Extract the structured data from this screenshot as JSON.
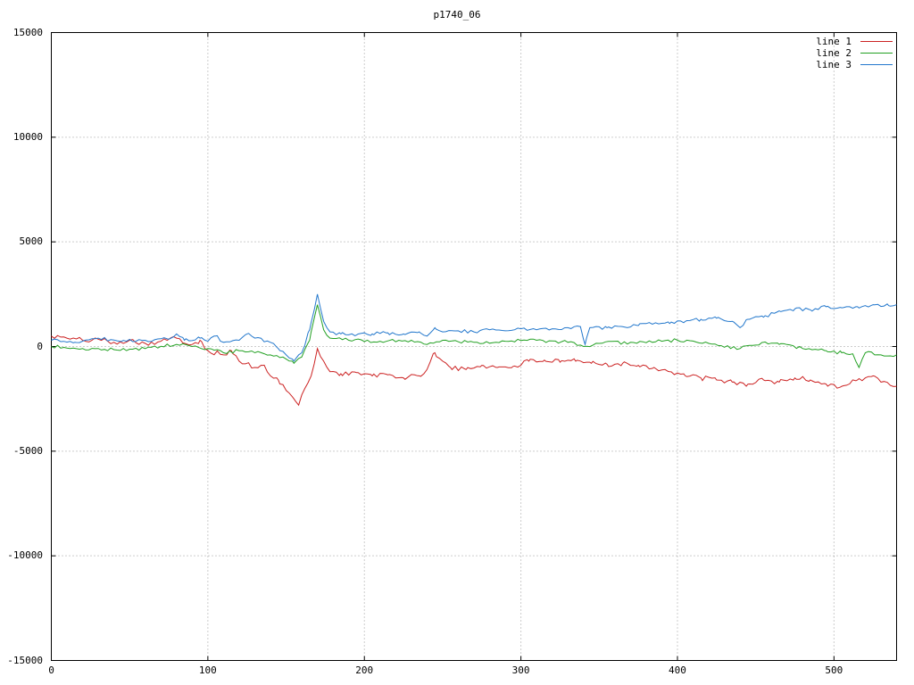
{
  "chart_data": {
    "type": "line",
    "title": "p1740_06",
    "xlabel": "",
    "ylabel": "",
    "xlim": [
      0,
      540
    ],
    "ylim": [
      -15000,
      15000
    ],
    "x_ticks": [
      0,
      100,
      200,
      300,
      400,
      500
    ],
    "y_ticks": [
      -15000,
      -10000,
      -5000,
      0,
      5000,
      10000,
      15000
    ],
    "grid": true,
    "grid_style": "dotted",
    "grid_color": "#9a9a9a",
    "axis_color": "#000000",
    "background_color": "#ffffff",
    "legend_position": "top-right-inside",
    "series": [
      {
        "name": "line 1",
        "color": "#cc2222",
        "noise_amplitude": 120,
        "points": [
          [
            0,
            500
          ],
          [
            10,
            400
          ],
          [
            20,
            300
          ],
          [
            30,
            350
          ],
          [
            40,
            200
          ],
          [
            50,
            300
          ],
          [
            60,
            150
          ],
          [
            70,
            250
          ],
          [
            80,
            400
          ],
          [
            90,
            100
          ],
          [
            95,
            300
          ],
          [
            100,
            -200
          ],
          [
            110,
            -400
          ],
          [
            115,
            -200
          ],
          [
            120,
            -700
          ],
          [
            130,
            -1000
          ],
          [
            135,
            -900
          ],
          [
            140,
            -1400
          ],
          [
            145,
            -1600
          ],
          [
            150,
            -2100
          ],
          [
            155,
            -2500
          ],
          [
            158,
            -2800
          ],
          [
            162,
            -2000
          ],
          [
            166,
            -1400
          ],
          [
            170,
            -100
          ],
          [
            174,
            -700
          ],
          [
            178,
            -1200
          ],
          [
            185,
            -1300
          ],
          [
            195,
            -1250
          ],
          [
            205,
            -1400
          ],
          [
            215,
            -1350
          ],
          [
            225,
            -1500
          ],
          [
            235,
            -1400
          ],
          [
            240,
            -1100
          ],
          [
            245,
            -300
          ],
          [
            250,
            -700
          ],
          [
            255,
            -1000
          ],
          [
            265,
            -1100
          ],
          [
            275,
            -900
          ],
          [
            285,
            -1000
          ],
          [
            295,
            -950
          ],
          [
            305,
            -700
          ],
          [
            315,
            -650
          ],
          [
            325,
            -750
          ],
          [
            335,
            -700
          ],
          [
            345,
            -800
          ],
          [
            355,
            -850
          ],
          [
            365,
            -800
          ],
          [
            375,
            -900
          ],
          [
            385,
            -1000
          ],
          [
            395,
            -1200
          ],
          [
            405,
            -1400
          ],
          [
            415,
            -1500
          ],
          [
            425,
            -1600
          ],
          [
            435,
            -1700
          ],
          [
            445,
            -1800
          ],
          [
            455,
            -1600
          ],
          [
            465,
            -1700
          ],
          [
            475,
            -1500
          ],
          [
            485,
            -1600
          ],
          [
            495,
            -1800
          ],
          [
            505,
            -1900
          ],
          [
            515,
            -1600
          ],
          [
            525,
            -1400
          ],
          [
            530,
            -1700
          ],
          [
            540,
            -1900
          ]
        ]
      },
      {
        "name": "line 2",
        "color": "#22a022",
        "noise_amplitude": 80,
        "points": [
          [
            0,
            0
          ],
          [
            20,
            -100
          ],
          [
            40,
            -150
          ],
          [
            60,
            -100
          ],
          [
            80,
            100
          ],
          [
            90,
            0
          ],
          [
            100,
            -100
          ],
          [
            110,
            -300
          ],
          [
            120,
            -200
          ],
          [
            130,
            -300
          ],
          [
            140,
            -400
          ],
          [
            150,
            -600
          ],
          [
            155,
            -800
          ],
          [
            160,
            -500
          ],
          [
            165,
            300
          ],
          [
            170,
            2000
          ],
          [
            174,
            800
          ],
          [
            178,
            400
          ],
          [
            190,
            300
          ],
          [
            210,
            250
          ],
          [
            230,
            300
          ],
          [
            240,
            100
          ],
          [
            250,
            300
          ],
          [
            270,
            200
          ],
          [
            290,
            250
          ],
          [
            310,
            300
          ],
          [
            330,
            200
          ],
          [
            340,
            0
          ],
          [
            350,
            150
          ],
          [
            370,
            200
          ],
          [
            390,
            250
          ],
          [
            400,
            300
          ],
          [
            420,
            150
          ],
          [
            440,
            -100
          ],
          [
            455,
            200
          ],
          [
            465,
            100
          ],
          [
            480,
            -100
          ],
          [
            495,
            -200
          ],
          [
            505,
            -300
          ],
          [
            512,
            -350
          ],
          [
            516,
            -1000
          ],
          [
            520,
            -300
          ],
          [
            530,
            -400
          ],
          [
            540,
            -400
          ]
        ]
      },
      {
        "name": "line 3",
        "color": "#2277cc",
        "noise_amplitude": 80,
        "points": [
          [
            0,
            300
          ],
          [
            15,
            200
          ],
          [
            30,
            400
          ],
          [
            45,
            250
          ],
          [
            60,
            300
          ],
          [
            75,
            350
          ],
          [
            80,
            600
          ],
          [
            85,
            300
          ],
          [
            95,
            400
          ],
          [
            100,
            250
          ],
          [
            105,
            500
          ],
          [
            110,
            200
          ],
          [
            120,
            300
          ],
          [
            125,
            600
          ],
          [
            130,
            400
          ],
          [
            140,
            200
          ],
          [
            145,
            -100
          ],
          [
            150,
            -400
          ],
          [
            155,
            -700
          ],
          [
            160,
            -300
          ],
          [
            165,
            800
          ],
          [
            170,
            2500
          ],
          [
            174,
            1200
          ],
          [
            178,
            700
          ],
          [
            185,
            600
          ],
          [
            195,
            550
          ],
          [
            205,
            600
          ],
          [
            215,
            650
          ],
          [
            225,
            600
          ],
          [
            235,
            700
          ],
          [
            240,
            500
          ],
          [
            245,
            900
          ],
          [
            250,
            700
          ],
          [
            260,
            750
          ],
          [
            270,
            700
          ],
          [
            280,
            800
          ],
          [
            290,
            750
          ],
          [
            300,
            850
          ],
          [
            310,
            800
          ],
          [
            320,
            850
          ],
          [
            330,
            900
          ],
          [
            338,
            950
          ],
          [
            341,
            100
          ],
          [
            344,
            900
          ],
          [
            355,
            900
          ],
          [
            365,
            950
          ],
          [
            375,
            1000
          ],
          [
            385,
            1100
          ],
          [
            395,
            1100
          ],
          [
            405,
            1200
          ],
          [
            415,
            1300
          ],
          [
            425,
            1350
          ],
          [
            435,
            1200
          ],
          [
            440,
            900
          ],
          [
            445,
            1300
          ],
          [
            455,
            1400
          ],
          [
            465,
            1700
          ],
          [
            475,
            1800
          ],
          [
            485,
            1750
          ],
          [
            495,
            1900
          ],
          [
            505,
            1850
          ],
          [
            515,
            1900
          ],
          [
            525,
            2000
          ],
          [
            535,
            1950
          ],
          [
            540,
            2000
          ]
        ]
      }
    ]
  }
}
